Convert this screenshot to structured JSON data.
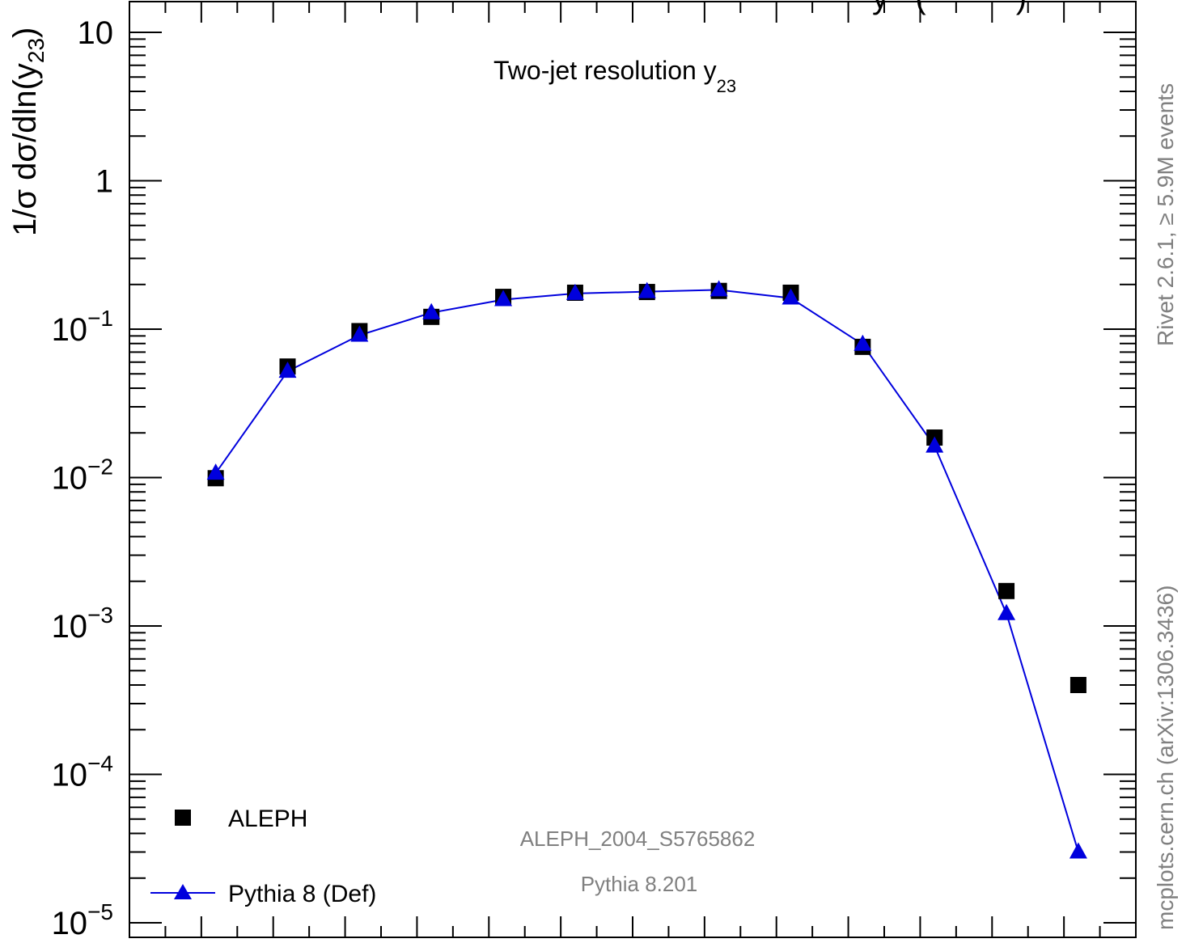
{
  "chart_data": {
    "type": "scatter",
    "title": "Two-jet resolution y",
    "title_sub": "23",
    "ylabel": "1/σ  dσ/dln(y",
    "ylabel_sub": "23",
    "ylabel_close": ")",
    "yscale": "log",
    "ylim": [
      1e-05,
      15
    ],
    "xlim": [
      0,
      14
    ],
    "x_ticklabels_shown": false,
    "y_ticks": [
      {
        "value": 10,
        "base": "10",
        "exp": ""
      },
      {
        "value": 1,
        "base": "1",
        "exp": ""
      },
      {
        "value": 0.1,
        "base": "10",
        "exp": "−1"
      },
      {
        "value": 0.01,
        "base": "10",
        "exp": "−2"
      },
      {
        "value": 0.001,
        "base": "10",
        "exp": "−3"
      },
      {
        "value": 0.0001,
        "base": "10",
        "exp": "−4"
      },
      {
        "value": 1e-05,
        "base": "10",
        "exp": "−5"
      }
    ],
    "series": [
      {
        "name": "ALEPH",
        "marker": "square",
        "color": "#000000",
        "line": false,
        "x": [
          1.2,
          2.2,
          3.2,
          4.2,
          5.2,
          6.2,
          7.2,
          8.2,
          9.2,
          10.2,
          11.2,
          12.2,
          13.2
        ],
        "y": [
          0.0099,
          0.056,
          0.097,
          0.121,
          0.165,
          0.176,
          0.178,
          0.181,
          0.176,
          0.076,
          0.0186,
          0.00172,
          0.0004
        ]
      },
      {
        "name": "Pythia 8 (Def)",
        "marker": "triangle",
        "color": "#0000dd",
        "line": true,
        "x": [
          1.2,
          2.2,
          3.2,
          4.2,
          5.2,
          6.2,
          7.2,
          8.2,
          9.2,
          10.2,
          11.2,
          12.2,
          13.2
        ],
        "y": [
          0.0107,
          0.052,
          0.091,
          0.129,
          0.158,
          0.174,
          0.179,
          0.184,
          0.162,
          0.079,
          0.0163,
          0.00121,
          3e-05
        ]
      }
    ],
    "legend_position": "bottom-left",
    "annotations": {
      "analysis": "ALEPH_2004_S5765862",
      "generator": "Pythia 8.201",
      "side_top": "Rivet 2.6.1, ≥ 5.9M events",
      "side_bottom": "mcplots.cern.ch (arXiv:1306.3436)",
      "top_header_partial": "y   (          )"
    },
    "grid": false
  },
  "colors": {
    "axis": "#000000",
    "mc_line": "#0000dd",
    "annotation_gray": "#808080"
  }
}
